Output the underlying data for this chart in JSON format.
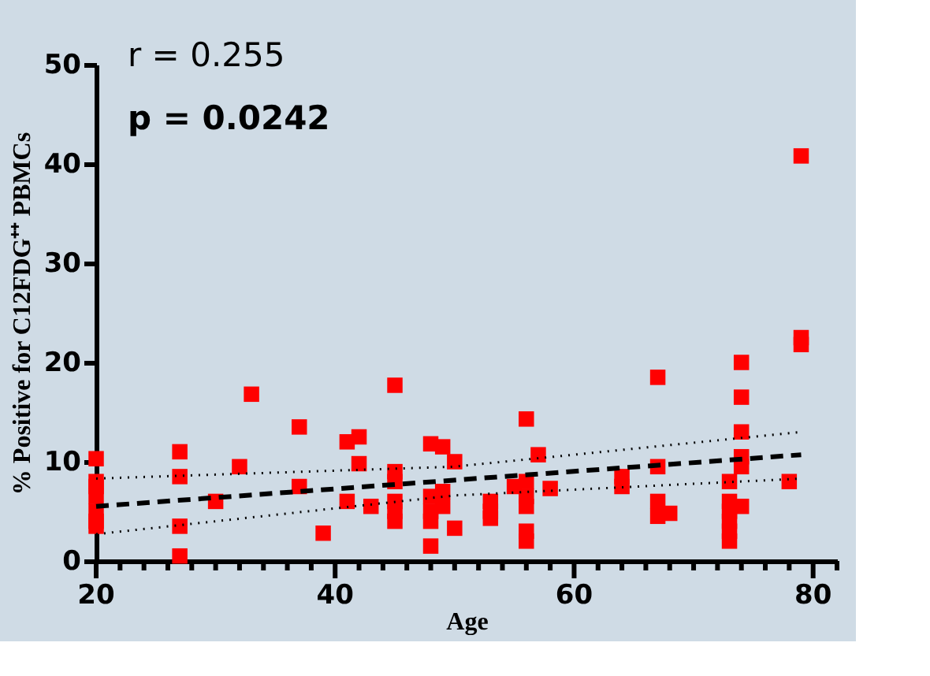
{
  "chart_data": {
    "type": "scatter",
    "xlabel": "Age",
    "ylabel": "% Positive for C12FDG⁺⁺ PBMCs",
    "annotations": [
      "r = 0.255",
      "p = 0.0242"
    ],
    "xlim": [
      20,
      82
    ],
    "ylim": [
      0,
      50
    ],
    "xticks": [
      20,
      {
        "value": 22,
        "label": null
      },
      {
        "value": 24,
        "label": null
      },
      {
        "value": 26,
        "label": null
      },
      {
        "value": 28,
        "label": null
      },
      {
        "value": 30,
        "label": null
      },
      {
        "value": 32,
        "label": null
      },
      {
        "value": 34,
        "label": null
      },
      {
        "value": 36,
        "label": null
      },
      {
        "value": 38,
        "label": null
      },
      40,
      {
        "value": 42,
        "label": null
      },
      {
        "value": 44,
        "label": null
      },
      {
        "value": 46,
        "label": null
      },
      {
        "value": 48,
        "label": null
      },
      {
        "value": 50,
        "label": null
      },
      {
        "value": 52,
        "label": null
      },
      {
        "value": 54,
        "label": null
      },
      {
        "value": 56,
        "label": null
      },
      {
        "value": 58,
        "label": null
      },
      60,
      {
        "value": 62,
        "label": null
      },
      {
        "value": 64,
        "label": null
      },
      {
        "value": 66,
        "label": null
      },
      {
        "value": 68,
        "label": null
      },
      {
        "value": 70,
        "label": null
      },
      {
        "value": 72,
        "label": null
      },
      {
        "value": 74,
        "label": null
      },
      {
        "value": 76,
        "label": null
      },
      {
        "value": 78,
        "label": null
      },
      80,
      {
        "value": 82,
        "label": null
      }
    ],
    "yticks": [
      0,
      10,
      20,
      30,
      40,
      50
    ],
    "grid": false,
    "series": [
      {
        "type": "scatter",
        "marker": "square",
        "color": "#ff0000",
        "x": [
          20,
          20,
          20,
          20,
          20,
          20,
          20,
          27,
          27,
          27,
          27,
          30,
          32,
          33,
          37,
          37,
          39,
          41,
          41,
          42,
          42,
          43,
          45,
          45,
          45,
          45,
          45,
          45,
          48,
          48,
          48,
          48,
          48,
          49,
          49,
          49,
          50,
          50,
          53,
          53,
          53,
          55,
          56,
          56,
          56,
          56,
          56,
          56,
          57,
          58,
          64,
          64,
          67,
          67,
          67,
          67,
          68,
          73,
          73,
          73,
          73,
          73,
          73,
          74,
          74,
          74,
          74,
          74,
          74,
          78,
          79,
          79,
          79
        ],
        "values": [
          10.3,
          8,
          7.5,
          6.5,
          5,
          4,
          3.5,
          11,
          8.5,
          3.5,
          0.5,
          6,
          9.5,
          16.8,
          13.5,
          7.5,
          2.8,
          12,
          6,
          12.5,
          9.8,
          5.5,
          17.7,
          9,
          8,
          6,
          5,
          4,
          11.8,
          6.5,
          5,
          4,
          1.5,
          11.5,
          7,
          5.5,
          10,
          3.3,
          6,
          5,
          4.3,
          7.5,
          14.3,
          8,
          6.5,
          5.5,
          3,
          2,
          10.7,
          7.3,
          8.5,
          7.5,
          18.5,
          9.5,
          6,
          4.5,
          4.8,
          8,
          6,
          5,
          4,
          3,
          2,
          20,
          16.5,
          13,
          10.5,
          9.5,
          5.5,
          8,
          40.8,
          22.5,
          21.8
        ]
      },
      {
        "type": "line",
        "color": "#000000",
        "line_style": "dashed",
        "marker": "none",
        "x": [
          20,
          79
        ],
        "values": [
          5.5,
          10.7
        ]
      },
      {
        "type": "line",
        "color": "#000000",
        "line_style": "dotted",
        "marker": "none",
        "x": [
          20,
          50,
          79
        ],
        "values": [
          8.3,
          9.5,
          13
        ]
      },
      {
        "type": "line",
        "color": "#000000",
        "line_style": "dotted",
        "marker": "none",
        "x": [
          20,
          50,
          79
        ],
        "values": [
          2.7,
          6.6,
          8.3
        ]
      }
    ]
  }
}
